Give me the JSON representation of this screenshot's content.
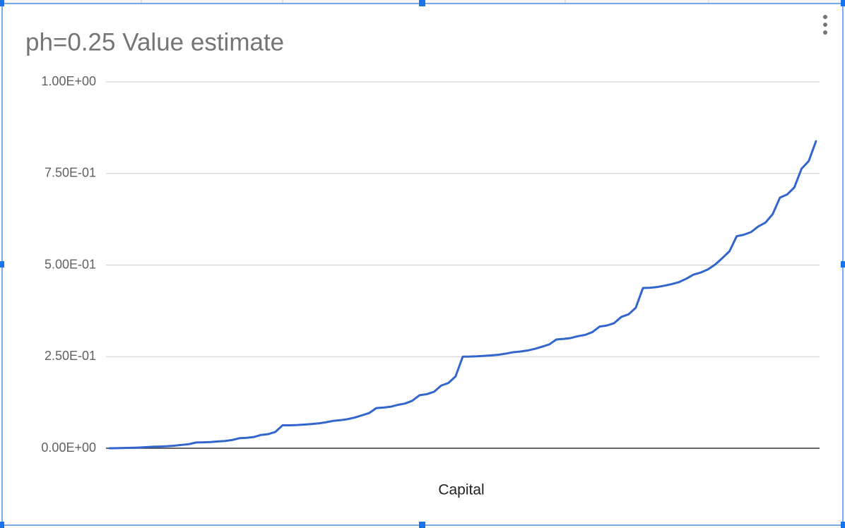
{
  "chart_data": {
    "type": "line",
    "title": "ph=0.25 Value estimate",
    "x_label": "Capital",
    "color": "#3366cc",
    "values": [
      7e-05,
      0.00029,
      0.0007,
      0.00117,
      0.00177,
      0.00278,
      0.00404,
      0.00466,
      0.0056,
      0.00709,
      0.00904,
      0.01112,
      0.01568,
      0.01615,
      0.01695,
      0.01865,
      0.01983,
      0.02241,
      0.02739,
      0.02834,
      0.0305,
      0.03616,
      0.0385,
      0.0445,
      0.0625,
      0.06272,
      0.06338,
      0.06459,
      0.066,
      0.06782,
      0.07084,
      0.07461,
      0.07649,
      0.0793,
      0.08376,
      0.08962,
      0.09587,
      0.10954,
      0.11094,
      0.11336,
      0.11846,
      0.12198,
      0.12972,
      0.14466,
      0.14752,
      0.15398,
      0.17099,
      0.17799,
      0.19599,
      0.25,
      0.25022,
      0.25088,
      0.25209,
      0.2535,
      0.25532,
      0.25834,
      0.26211,
      0.26399,
      0.26681,
      0.27126,
      0.27712,
      0.28337,
      0.29704,
      0.29844,
      0.30087,
      0.30596,
      0.30948,
      0.31722,
      0.33216,
      0.33502,
      0.34149,
      0.35849,
      0.36549,
      0.38349,
      0.4375,
      0.43816,
      0.44013,
      0.44376,
      0.44799,
      0.45344,
      0.46253,
      0.47383,
      0.47947,
      0.48791,
      0.50127,
      0.51887,
      0.53762,
      0.57862,
      0.58282,
      0.59008,
      0.60537,
      0.61594,
      0.63915,
      0.68396,
      0.69256,
      0.71195,
      0.76297,
      0.78396,
      0.83797
    ],
    "ylim": [
      0,
      1
    ],
    "yticks": [
      {
        "value": 0,
        "label": "0.00E+00"
      },
      {
        "value": 0.25,
        "label": "2.50E-01"
      },
      {
        "value": 0.5,
        "label": "5.00E-01"
      },
      {
        "value": 0.75,
        "label": "7.50E-01"
      },
      {
        "value": 1,
        "label": "1.00E+00"
      }
    ],
    "grid": true
  }
}
